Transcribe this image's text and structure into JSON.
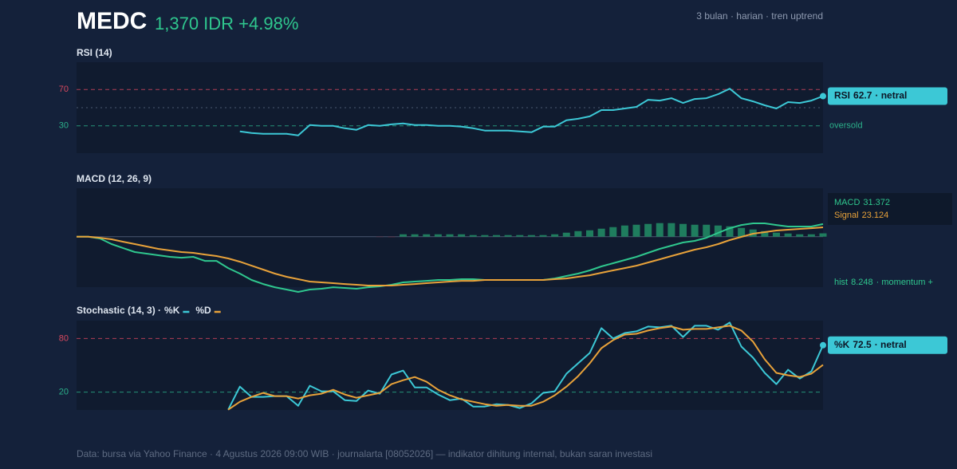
{
  "header": {
    "ticker": "MEDC",
    "price": "1,370 IDR +4.98%",
    "meta": "3 bulan · harian · tren uptrend"
  },
  "footer": "Data: bursa via Yahoo Finance · 4 Agustus 2026 09:00 WIB · journalarta [08052026] — indikator dihitung internal, bukan saran investasi",
  "chart_data": [
    {
      "type": "line",
      "title": "RSI (14)",
      "ylim": [
        0,
        100
      ],
      "yticks": [
        30,
        70
      ],
      "tick_colors": [
        "#2bb08a",
        "#d9485f"
      ],
      "zone_label": "oversold",
      "status": "· netral",
      "series": [
        {
          "name": "RSI",
          "color": "#3cc8d6",
          "values": [
            null,
            null,
            null,
            null,
            null,
            null,
            null,
            null,
            null,
            null,
            null,
            null,
            null,
            null,
            23.9,
            22.2,
            21.3,
            21.3,
            21.3,
            19.6,
            30.9,
            30.0,
            30.0,
            27.4,
            25.7,
            30.9,
            30.0,
            31.7,
            32.6,
            30.9,
            30.9,
            30.0,
            30.0,
            29.1,
            27.4,
            24.8,
            24.8,
            24.8,
            23.9,
            23.0,
            29.1,
            29.1,
            36.1,
            37.8,
            40.4,
            47.4,
            47.4,
            49.1,
            50.9,
            58.7,
            57.8,
            60.4,
            55.2,
            59.6,
            60.4,
            64.8,
            70.9,
            60.4,
            56.9,
            52.6,
            49.1,
            56.1,
            55.2,
            57.8,
            62.7
          ]
        }
      ]
    },
    {
      "type": "line",
      "title": "MACD (12, 26, 9)",
      "ylim": [
        -125,
        120
      ],
      "note": "· momentum +",
      "series": [
        {
          "name": "MACD",
          "color": "#2fc78e",
          "values": [
            0,
            0,
            -4.5,
            -18.4,
            -28.3,
            -38.1,
            -42.1,
            -46.0,
            -50.0,
            -52.0,
            -50.0,
            -59.9,
            -59.9,
            -77.7,
            -91.5,
            -107.3,
            -117.2,
            -125.1,
            -131.0,
            -136.9,
            -131.0,
            -129.0,
            -125.1,
            -127.0,
            -129.0,
            -125.1,
            -123.1,
            -119.1,
            -113.2,
            -111.2,
            -109.3,
            -107.3,
            -107.3,
            -105.3,
            -105.3,
            -107.3,
            -107.3,
            -107.3,
            -107.3,
            -107.3,
            -107.3,
            -103.4,
            -97.4,
            -91.5,
            -83.6,
            -73.7,
            -65.8,
            -57.9,
            -50.0,
            -40.1,
            -30.2,
            -22.3,
            -14.4,
            -10.5,
            -2.6,
            9.3,
            21.1,
            29.0,
            33.0,
            33.0,
            29.0,
            25.1,
            25.1,
            25.1,
            31.372
          ]
        },
        {
          "name": "Signal",
          "color": "#e8a23a",
          "values": [
            0,
            0,
            -2.6,
            -6.5,
            -12.5,
            -18.4,
            -24.3,
            -30.2,
            -34.2,
            -38.1,
            -40.1,
            -44.1,
            -48.0,
            -53.9,
            -61.9,
            -71.8,
            -81.6,
            -91.5,
            -99.4,
            -105.3,
            -111.2,
            -113.2,
            -115.2,
            -117.2,
            -119.1,
            -121.1,
            -121.1,
            -121.1,
            -119.1,
            -117.2,
            -115.2,
            -113.2,
            -111.2,
            -109.3,
            -109.3,
            -107.3,
            -107.3,
            -107.3,
            -107.3,
            -107.3,
            -107.3,
            -105.3,
            -103.4,
            -99.4,
            -95.5,
            -89.5,
            -83.6,
            -77.7,
            -71.8,
            -63.9,
            -56.0,
            -48.0,
            -40.1,
            -32.2,
            -26.3,
            -18.4,
            -8.5,
            -0.6,
            7.3,
            11.3,
            15.2,
            17.2,
            19.2,
            21.1,
            23.124
          ]
        },
        {
          "name": "hist",
          "type": "bar",
          "color": "#1f7d5e",
          "negative_color": "#7a2a3a",
          "values": [
            0,
            0,
            0,
            0,
            0,
            0,
            0,
            0,
            0,
            0,
            0,
            0,
            0,
            0,
            0,
            0,
            0,
            0,
            0,
            0,
            0,
            0,
            0,
            0,
            0,
            0,
            -0.8,
            -1.0,
            5.9,
            5.9,
            5.9,
            5.9,
            5.9,
            5.9,
            4.0,
            4.0,
            4.0,
            4.0,
            4.0,
            4.0,
            4.0,
            5.9,
            9.9,
            13.8,
            15.8,
            19.8,
            23.7,
            27.7,
            29.6,
            31.6,
            33.6,
            33.6,
            31.6,
            29.6,
            29.6,
            27.7,
            25.7,
            21.7,
            17.8,
            13.8,
            9.9,
            7.9,
            5.9,
            5.9,
            8.248
          ]
        }
      ]
    },
    {
      "type": "line",
      "title": "Stochastic (14, 3) ·",
      "ylim": [
        0,
        100
      ],
      "yticks": [
        20,
        80
      ],
      "tick_colors": [
        "#2bb08a",
        "#d9485f"
      ],
      "status": "· netral",
      "series": [
        {
          "name": "%K",
          "color": "#3cc8d6",
          "values": [
            null,
            null,
            null,
            null,
            null,
            null,
            null,
            null,
            null,
            null,
            null,
            null,
            null,
            0.3,
            26.2,
            14.6,
            14.6,
            15.5,
            15.5,
            4.7,
            27.1,
            20.9,
            20.9,
            11.0,
            10.1,
            21.8,
            18.2,
            39.7,
            44.1,
            25.3,
            25.3,
            17.3,
            11.0,
            12.8,
            3.8,
            3.8,
            6.5,
            5.6,
            2.1,
            7.4,
            19.1,
            20.9,
            40.6,
            52.2,
            63.8,
            91.6,
            80.0,
            86.2,
            88.0,
            93.4,
            92.5,
            94.3,
            81.7,
            94.3,
            94.3,
            89.8,
            97.9,
            71.0,
            58.5,
            41.5,
            28.9,
            45.0,
            35.2,
            43.2,
            72.5
          ]
        },
        {
          "name": "%D",
          "color": "#e8a23a",
          "values": [
            null,
            null,
            null,
            null,
            null,
            null,
            null,
            null,
            null,
            null,
            null,
            null,
            null,
            0.3,
            9.2,
            14.6,
            19.1,
            15.5,
            15.5,
            12.8,
            16.4,
            18.2,
            22.6,
            17.3,
            13.7,
            16.4,
            19.1,
            28.9,
            33.3,
            36.9,
            31.6,
            22.6,
            16.4,
            11.9,
            9.2,
            6.5,
            4.7,
            5.6,
            4.7,
            4.7,
            9.2,
            16.4,
            26.2,
            37.9,
            52.2,
            69.2,
            78.2,
            84.4,
            85.3,
            88.9,
            91.6,
            93.4,
            89.8,
            90.7,
            90.7,
            92.5,
            94.3,
            88.9,
            76.4,
            56.7,
            41.5,
            38.8,
            37.0,
            40.6,
            50.5
          ]
        }
      ]
    }
  ]
}
